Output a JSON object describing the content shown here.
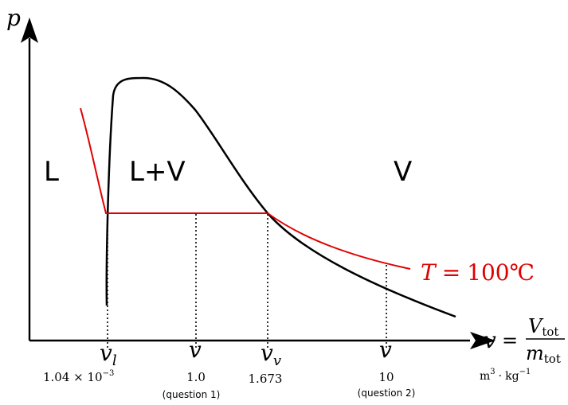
{
  "axes": {
    "y_label": "p",
    "x_label_var": "v",
    "x_label_eq": "=",
    "frac_num_main": "V",
    "frac_num_sub": "tot",
    "frac_den_main": "m",
    "frac_den_sub": "tot",
    "units_m": "m",
    "units_m_exp": "3",
    "units_dot": "·",
    "units_kg": "kg",
    "units_kg_exp": "−1"
  },
  "regions": {
    "liquid": "L",
    "mixture": "L+V",
    "vapor": "V"
  },
  "isotherm": {
    "label_T": "T",
    "label_eq": "=",
    "label_value": "100℃",
    "color": "#e00000"
  },
  "dome_color": "#000000",
  "markers": {
    "vl": {
      "var": "v",
      "sub": "l",
      "value_base": "1.04 × 10",
      "value_exp": "−3"
    },
    "v1": {
      "var": "v",
      "value": "1.0",
      "note": "(question 1)"
    },
    "vv": {
      "var": "v",
      "sub": "v",
      "value": "1.673"
    },
    "v2": {
      "var": "v",
      "value": "10",
      "note": "(question 2)"
    }
  }
}
